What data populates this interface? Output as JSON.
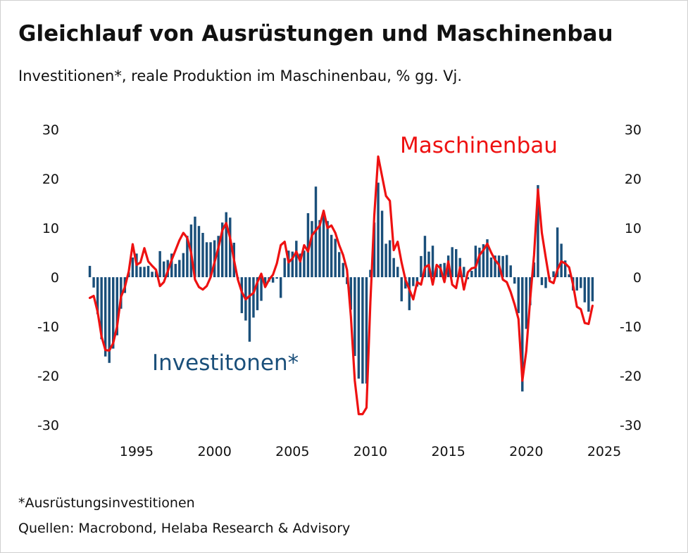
{
  "title": "Gleichlauf von Ausrüstungen und Maschinenbau",
  "subtitle": "Investitionen*, reale Produktion im Maschinenbau, % gg. Vj.",
  "footnote": "*Ausrüstungsinvestitionen",
  "source": "Quellen: Macrobond, Helaba Research & Advisory",
  "colors": {
    "bars": "#1a4f7a",
    "line": "#ee1111",
    "text": "#111111"
  },
  "chart_data": {
    "type": "bar+line",
    "ylim": [
      -30,
      30
    ],
    "yticks": [
      30,
      20,
      10,
      0,
      -10,
      -20,
      -30
    ],
    "xlim": [
      1991.75,
      2025.0
    ],
    "xticks": [
      1995,
      2000,
      2005,
      2010,
      2015,
      2020,
      2025
    ],
    "grid": false,
    "annotations": {
      "line_label": "Maschinenbau",
      "bar_label": "Investitonen*"
    },
    "bar_series": {
      "name": "Ausrüstungsinvestitionen",
      "start_year": 1992.0,
      "step": 0.25,
      "values": [
        2.3,
        -2.1,
        -7.5,
        -12.6,
        -16.1,
        -17.4,
        -14.5,
        -11.8,
        -6.4,
        -3.2,
        1.0,
        4.0,
        4.8,
        2.1,
        2.1,
        2.3,
        1.1,
        1.2,
        5.3,
        3.2,
        3.5,
        4.8,
        2.7,
        3.5,
        4.9,
        8.4,
        10.7,
        12.3,
        10.4,
        9.0,
        7.1,
        7.1,
        7.5,
        8.4,
        11.1,
        13.2,
        12.1,
        7.0,
        -0.5,
        -7.3,
        -8.8,
        -13.1,
        -8.2,
        -6.7,
        -4.8,
        -2.0,
        -0.9,
        -1.1,
        -0.3,
        -4.2,
        3.9,
        5.4,
        5.2,
        7.4,
        4.8,
        5.4,
        13.0,
        11.4,
        18.4,
        11.6,
        12.9,
        11.4,
        8.6,
        7.8,
        5.1,
        2.9,
        -1.4,
        -6.6,
        -16.0,
        -20.6,
        -21.6,
        -21.6,
        1.5,
        11.1,
        19.2,
        13.5,
        6.8,
        7.5,
        3.9,
        2.1,
        -4.9,
        -2.3,
        -6.7,
        -1.8,
        -1.9,
        4.3,
        8.4,
        5.2,
        6.4,
        1.9,
        2.7,
        2.9,
        4.4,
        6.1,
        5.7,
        3.9,
        2.1,
        -0.4,
        1.3,
        6.4,
        6.0,
        6.7,
        7.7,
        4.0,
        4.4,
        4.4,
        4.3,
        4.5,
        2.4,
        -1.3,
        -7.3,
        -23.2,
        -10.5,
        -5.7,
        3.0,
        18.7,
        -1.6,
        -2.2,
        -0.4,
        1.2,
        10.1,
        6.8,
        3.4,
        0.6,
        -2.7,
        -2.7,
        -2.2,
        -5.1,
        -7.0,
        -4.9
      ]
    },
    "line_series": {
      "name": "Maschinenbau",
      "points": [
        [
          1992.0,
          -4.2
        ],
        [
          1992.25,
          -3.8
        ],
        [
          1992.5,
          -7.0
        ],
        [
          1992.75,
          -12.0
        ],
        [
          1993.0,
          -14.8
        ],
        [
          1993.25,
          -14.9
        ],
        [
          1993.5,
          -13.4
        ],
        [
          1993.75,
          -10.0
        ],
        [
          1994.0,
          -4.0
        ],
        [
          1994.25,
          -2.0
        ],
        [
          1994.5,
          1.2
        ],
        [
          1994.75,
          6.7
        ],
        [
          1995.0,
          2.5
        ],
        [
          1995.25,
          3.0
        ],
        [
          1995.5,
          5.9
        ],
        [
          1995.75,
          3.2
        ],
        [
          1996.0,
          2.3
        ],
        [
          1996.25,
          1.5
        ],
        [
          1996.5,
          -1.8
        ],
        [
          1996.75,
          -1.0
        ],
        [
          1997.0,
          1.2
        ],
        [
          1997.25,
          3.5
        ],
        [
          1997.5,
          5.5
        ],
        [
          1997.75,
          7.5
        ],
        [
          1998.0,
          9.0
        ],
        [
          1998.25,
          8.0
        ],
        [
          1998.5,
          5.0
        ],
        [
          1998.75,
          -0.5
        ],
        [
          1999.0,
          -2.0
        ],
        [
          1999.25,
          -2.5
        ],
        [
          1999.5,
          -1.8
        ],
        [
          1999.75,
          0.0
        ],
        [
          2000.0,
          3.0
        ],
        [
          2000.25,
          6.0
        ],
        [
          2000.5,
          9.5
        ],
        [
          2000.75,
          11.0
        ],
        [
          2001.0,
          8.0
        ],
        [
          2001.25,
          3.5
        ],
        [
          2001.5,
          -0.5
        ],
        [
          2001.75,
          -3.0
        ],
        [
          2002.0,
          -4.5
        ],
        [
          2002.25,
          -3.8
        ],
        [
          2002.5,
          -3.2
        ],
        [
          2002.75,
          -1.0
        ],
        [
          2003.0,
          0.7
        ],
        [
          2003.25,
          -2.0
        ],
        [
          2003.5,
          -0.5
        ],
        [
          2003.75,
          0.5
        ],
        [
          2004.0,
          2.8
        ],
        [
          2004.25,
          6.5
        ],
        [
          2004.5,
          7.2
        ],
        [
          2004.75,
          3.0
        ],
        [
          2005.0,
          3.8
        ],
        [
          2005.25,
          5.2
        ],
        [
          2005.5,
          3.2
        ],
        [
          2005.75,
          6.5
        ],
        [
          2006.0,
          5.2
        ],
        [
          2006.25,
          8.5
        ],
        [
          2006.5,
          9.5
        ],
        [
          2006.75,
          10.5
        ],
        [
          2007.0,
          13.5
        ],
        [
          2007.25,
          10.0
        ],
        [
          2007.5,
          10.5
        ],
        [
          2007.75,
          9.0
        ],
        [
          2008.0,
          6.5
        ],
        [
          2008.25,
          4.5
        ],
        [
          2008.5,
          1.5
        ],
        [
          2008.75,
          -8.0
        ],
        [
          2009.0,
          -21.0
        ],
        [
          2009.25,
          -27.8
        ],
        [
          2009.5,
          -27.8
        ],
        [
          2009.75,
          -26.5
        ],
        [
          2010.0,
          -5.0
        ],
        [
          2010.25,
          12.5
        ],
        [
          2010.5,
          24.5
        ],
        [
          2010.75,
          20.5
        ],
        [
          2011.0,
          16.5
        ],
        [
          2011.25,
          15.5
        ],
        [
          2011.5,
          5.5
        ],
        [
          2011.75,
          7.2
        ],
        [
          2012.0,
          3.0
        ],
        [
          2012.25,
          -0.5
        ],
        [
          2012.5,
          -2.5
        ],
        [
          2012.75,
          -4.5
        ],
        [
          2013.0,
          -1.0
        ],
        [
          2013.25,
          -1.5
        ],
        [
          2013.5,
          2.0
        ],
        [
          2013.75,
          2.5
        ],
        [
          2014.0,
          -1.5
        ],
        [
          2014.25,
          2.5
        ],
        [
          2014.5,
          1.8
        ],
        [
          2014.75,
          -1.0
        ],
        [
          2015.0,
          3.2
        ],
        [
          2015.25,
          -1.5
        ],
        [
          2015.5,
          -2.2
        ],
        [
          2015.75,
          2.0
        ],
        [
          2016.0,
          -2.5
        ],
        [
          2016.25,
          1.0
        ],
        [
          2016.5,
          1.8
        ],
        [
          2016.75,
          2.0
        ],
        [
          2017.0,
          4.5
        ],
        [
          2017.25,
          5.5
        ],
        [
          2017.5,
          6.8
        ],
        [
          2017.75,
          5.0
        ],
        [
          2018.0,
          3.5
        ],
        [
          2018.25,
          2.5
        ],
        [
          2018.5,
          -0.5
        ],
        [
          2018.75,
          -1.0
        ],
        [
          2019.0,
          -3.0
        ],
        [
          2019.25,
          -5.5
        ],
        [
          2019.5,
          -8.5
        ],
        [
          2019.75,
          -21.0
        ],
        [
          2020.0,
          -15.0
        ],
        [
          2020.25,
          -4.5
        ],
        [
          2020.5,
          4.5
        ],
        [
          2020.75,
          17.8
        ],
        [
          2021.0,
          9.0
        ],
        [
          2021.25,
          4.0
        ],
        [
          2021.5,
          -0.8
        ],
        [
          2021.75,
          -1.2
        ],
        [
          2022.0,
          1.5
        ],
        [
          2022.25,
          3.2
        ],
        [
          2022.5,
          2.8
        ],
        [
          2022.75,
          2.0
        ],
        [
          2023.0,
          -1.5
        ],
        [
          2023.25,
          -6.0
        ],
        [
          2023.5,
          -6.5
        ],
        [
          2023.75,
          -9.3
        ],
        [
          2024.0,
          -9.5
        ],
        [
          2024.25,
          -5.8
        ]
      ]
    }
  }
}
